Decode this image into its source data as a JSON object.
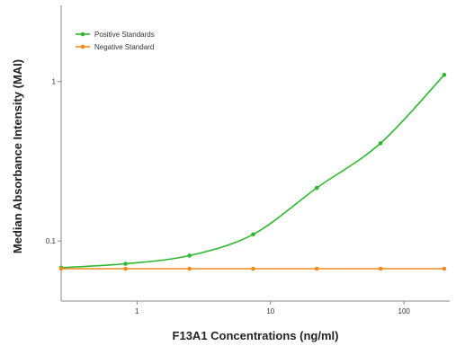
{
  "chart_data": {
    "type": "scatter",
    "xlabel": "F13A1 Concentrations (ng/ml)",
    "ylabel": "Median Absorbance Intensity (MAI)",
    "x_scale": "log",
    "y_scale": "log",
    "xlim": [
      0.27,
      220
    ],
    "ylim": [
      0.042,
      3.0
    ],
    "x_ticks": [
      {
        "value": 1,
        "label": "1"
      },
      {
        "value": 10,
        "label": "10"
      },
      {
        "value": 100,
        "label": "100"
      }
    ],
    "y_ticks": [
      {
        "value": 0.1,
        "label": "0.1"
      },
      {
        "value": 1,
        "label": "1"
      }
    ],
    "grid": false,
    "legend_position": "top-left",
    "series": [
      {
        "name": "Positive Standards",
        "color": "#2eb82e",
        "fit": "curve",
        "x": [
          0.27,
          0.82,
          2.47,
          7.41,
          22.2,
          66.7,
          200
        ],
        "y": [
          0.068,
          0.072,
          0.081,
          0.11,
          0.215,
          0.41,
          1.1
        ]
      },
      {
        "name": "Negative Standard",
        "color": "#f28a1e",
        "fit": "line",
        "x": [
          0.27,
          0.82,
          2.47,
          7.41,
          22.2,
          66.7,
          200
        ],
        "y": [
          0.067,
          0.067,
          0.067,
          0.067,
          0.067,
          0.067,
          0.067
        ]
      }
    ]
  }
}
